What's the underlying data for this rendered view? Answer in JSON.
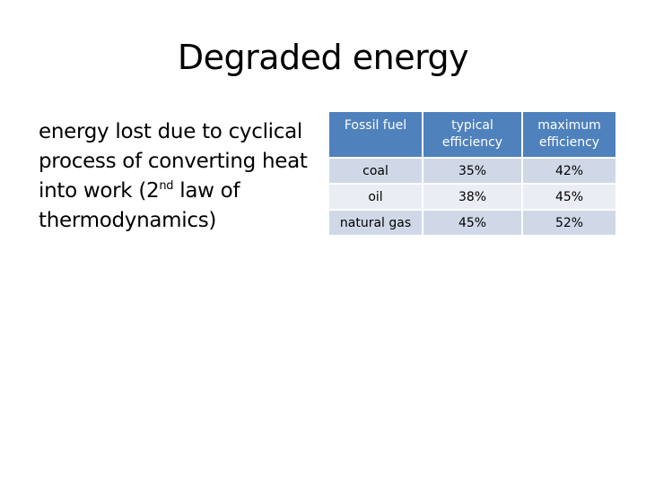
{
  "slide": {
    "title": "Degraded energy",
    "body": {
      "part1": "energy lost due to cyclical process of converting heat into work (2",
      "sup": "nd",
      "part2": " law of thermodynamics)"
    }
  },
  "table": {
    "headers": [
      "Fossil fuel",
      "typical efficiency",
      "maximum efficiency"
    ],
    "rows": [
      [
        "coal",
        "35%",
        "42%"
      ],
      [
        "oil",
        "38%",
        "45%"
      ],
      [
        "natural gas",
        "45%",
        "52%"
      ]
    ]
  },
  "colors": {
    "header_bg": "#4f81bd",
    "row_dark": "#d0d8e8",
    "row_light": "#e9edf4"
  }
}
